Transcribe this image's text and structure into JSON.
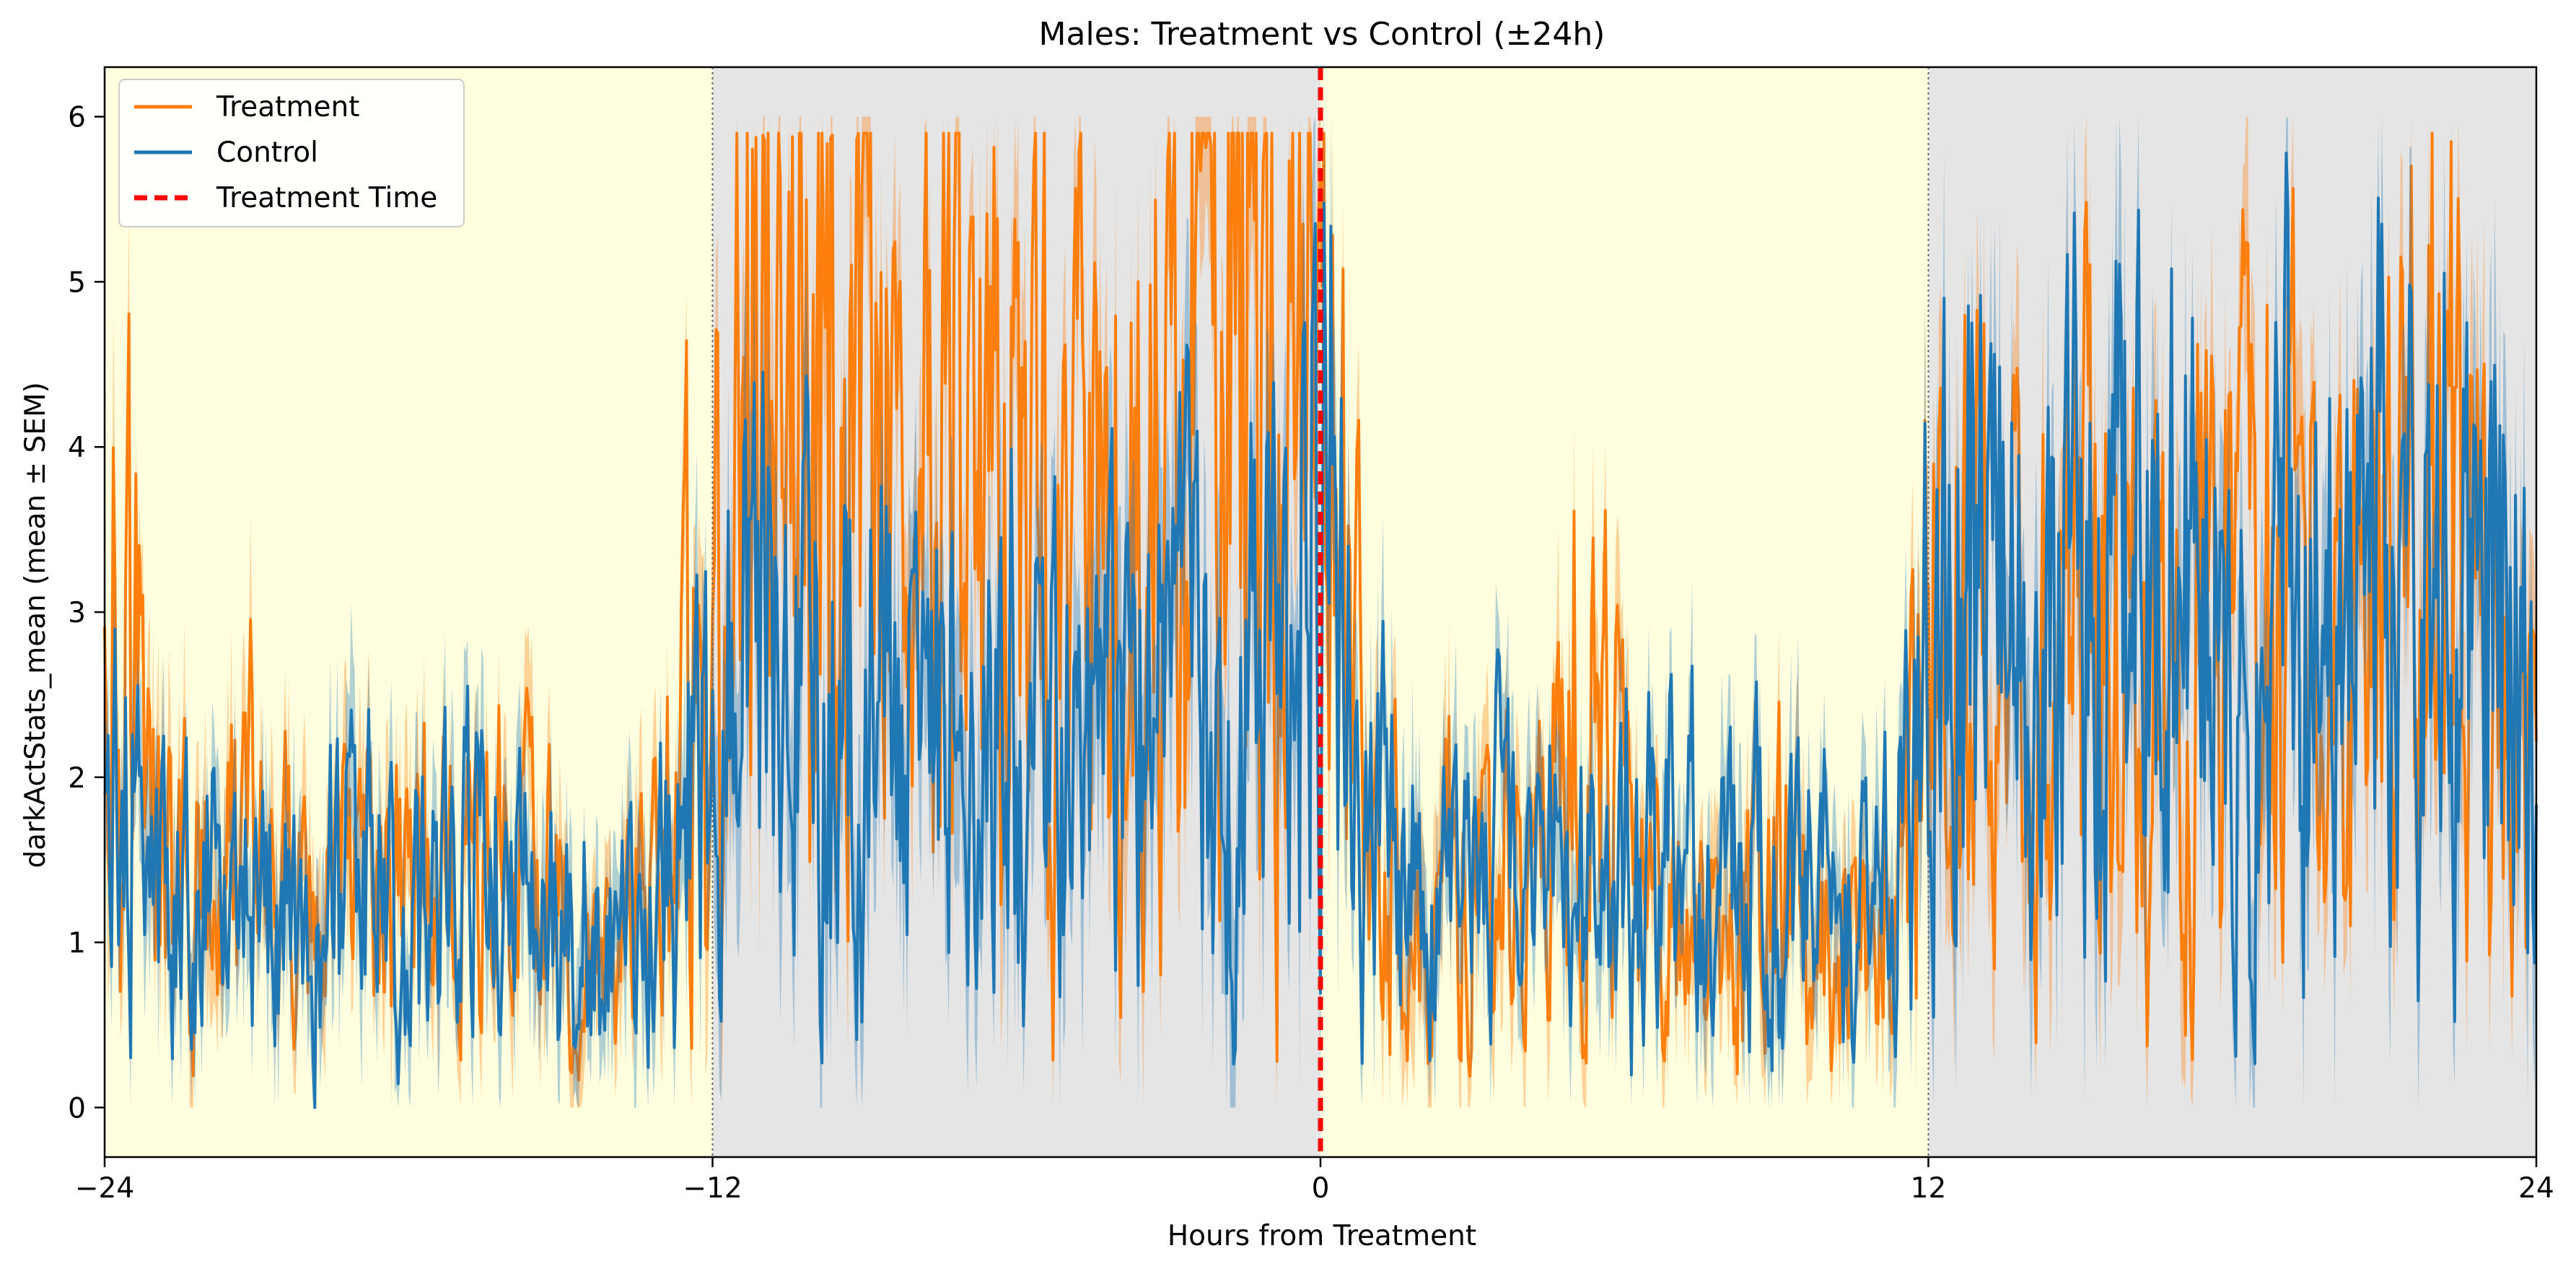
{
  "chart_data": {
    "type": "line",
    "title": "Males: Treatment vs Control (±24h)",
    "xlabel": "Hours from Treatment",
    "ylabel": "darkActStats_mean (mean ± SEM)",
    "xlim": [
      -24,
      24
    ],
    "ylim": [
      -0.3,
      6.3
    ],
    "x_ticks": [
      -24,
      -12,
      0,
      12,
      24
    ],
    "y_ticks": [
      0,
      1,
      2,
      3,
      4,
      5,
      6
    ],
    "grid": false,
    "legend_position": "top-left",
    "light_dark_bands": [
      {
        "phase": "light",
        "start": -24,
        "end": -12,
        "color": "#ffffe0"
      },
      {
        "phase": "dark",
        "start": -12,
        "end": 0,
        "color": "#e5e5e5"
      },
      {
        "phase": "light",
        "start": 0,
        "end": 12,
        "color": "#ffffe0"
      },
      {
        "phase": "dark",
        "start": 12,
        "end": 24,
        "color": "#e5e5e5"
      }
    ],
    "phase_boundaries": [
      -12,
      12
    ],
    "treatment_time": 0,
    "series": [
      {
        "name": "Treatment",
        "color": "#ff7f0e",
        "x": [
          -24,
          -23,
          -22,
          -21,
          -20,
          -19,
          -18,
          -17,
          -16,
          -15,
          -14,
          -13,
          -12,
          -11,
          -10,
          -9,
          -8,
          -7,
          -6,
          -5,
          -4,
          -3,
          -2,
          -1,
          0,
          1,
          2,
          3,
          4,
          5,
          6,
          7,
          8,
          9,
          10,
          11,
          12,
          13,
          14,
          15,
          16,
          17,
          18,
          19,
          20,
          21,
          22,
          23,
          24
        ],
        "mean": [
          4.2,
          1.5,
          1.2,
          1.6,
          1.1,
          1.3,
          1.4,
          1.2,
          1.5,
          1.1,
          0.8,
          1.3,
          3.6,
          4.6,
          4.3,
          4.2,
          3.7,
          3.9,
          3.8,
          3.3,
          3.6,
          4.2,
          4.5,
          4.7,
          4.3,
          1.6,
          1.3,
          1.6,
          1.1,
          2.6,
          1.6,
          1.1,
          0.9,
          1.5,
          1.1,
          1.0,
          2.8,
          3.3,
          3.0,
          3.2,
          2.6,
          3.1,
          2.8,
          3.3,
          2.6,
          3.2,
          3.6,
          3.4,
          2.2
        ],
        "sem": [
          0.8,
          0.5,
          0.5,
          0.5,
          0.4,
          0.5,
          0.5,
          0.4,
          0.5,
          0.4,
          0.4,
          0.5,
          0.7,
          0.7,
          0.7,
          0.7,
          0.7,
          0.7,
          0.7,
          0.7,
          0.7,
          0.7,
          0.7,
          0.7,
          0.7,
          0.5,
          0.5,
          0.5,
          0.4,
          0.6,
          0.5,
          0.4,
          0.4,
          0.5,
          0.4,
          0.4,
          0.6,
          0.7,
          0.7,
          0.7,
          0.6,
          0.7,
          0.6,
          0.7,
          0.6,
          0.7,
          0.7,
          0.7,
          0.6
        ]
      },
      {
        "name": "Control",
        "color": "#1f77b4",
        "x": [
          -24,
          -23,
          -22,
          -21,
          -20,
          -19,
          -18,
          -17,
          -16,
          -15,
          -14,
          -13,
          -12,
          -11,
          -10,
          -9,
          -8,
          -7,
          -6,
          -5,
          -4,
          -3,
          -2,
          -1,
          0,
          1,
          2,
          3,
          4,
          5,
          6,
          7,
          8,
          9,
          10,
          11,
          12,
          13,
          14,
          15,
          16,
          17,
          18,
          19,
          20,
          21,
          22,
          23,
          24
        ],
        "mean": [
          2.4,
          1.2,
          1.3,
          1.1,
          1.2,
          1.4,
          1.3,
          1.5,
          1.2,
          1.0,
          1.1,
          1.2,
          2.4,
          2.8,
          2.6,
          2.4,
          2.2,
          2.5,
          2.3,
          2.2,
          2.4,
          2.6,
          2.5,
          2.7,
          3.8,
          1.7,
          1.2,
          1.4,
          1.5,
          1.3,
          1.5,
          1.6,
          1.3,
          1.4,
          1.2,
          1.1,
          3.0,
          3.2,
          2.9,
          3.1,
          3.3,
          3.0,
          2.8,
          3.1,
          3.0,
          3.2,
          3.3,
          3.1,
          2.9
        ],
        "sem": [
          0.6,
          0.5,
          0.5,
          0.5,
          0.5,
          0.5,
          0.5,
          0.5,
          0.5,
          0.4,
          0.5,
          0.5,
          0.7,
          0.8,
          0.8,
          0.8,
          0.7,
          0.8,
          0.7,
          0.7,
          0.8,
          0.8,
          0.8,
          0.8,
          0.8,
          0.6,
          0.5,
          0.5,
          0.5,
          0.5,
          0.5,
          0.5,
          0.5,
          0.5,
          0.5,
          0.5,
          0.8,
          0.8,
          0.8,
          0.8,
          0.8,
          0.8,
          0.7,
          0.8,
          0.8,
          0.8,
          0.8,
          0.8,
          0.8
        ]
      }
    ],
    "legend": [
      {
        "label": "Treatment",
        "color": "#ff7f0e",
        "style": "solid"
      },
      {
        "label": "Control",
        "color": "#1f77b4",
        "style": "solid"
      },
      {
        "label": "Treatment Time",
        "color": "#ff0000",
        "style": "dashed"
      }
    ]
  }
}
